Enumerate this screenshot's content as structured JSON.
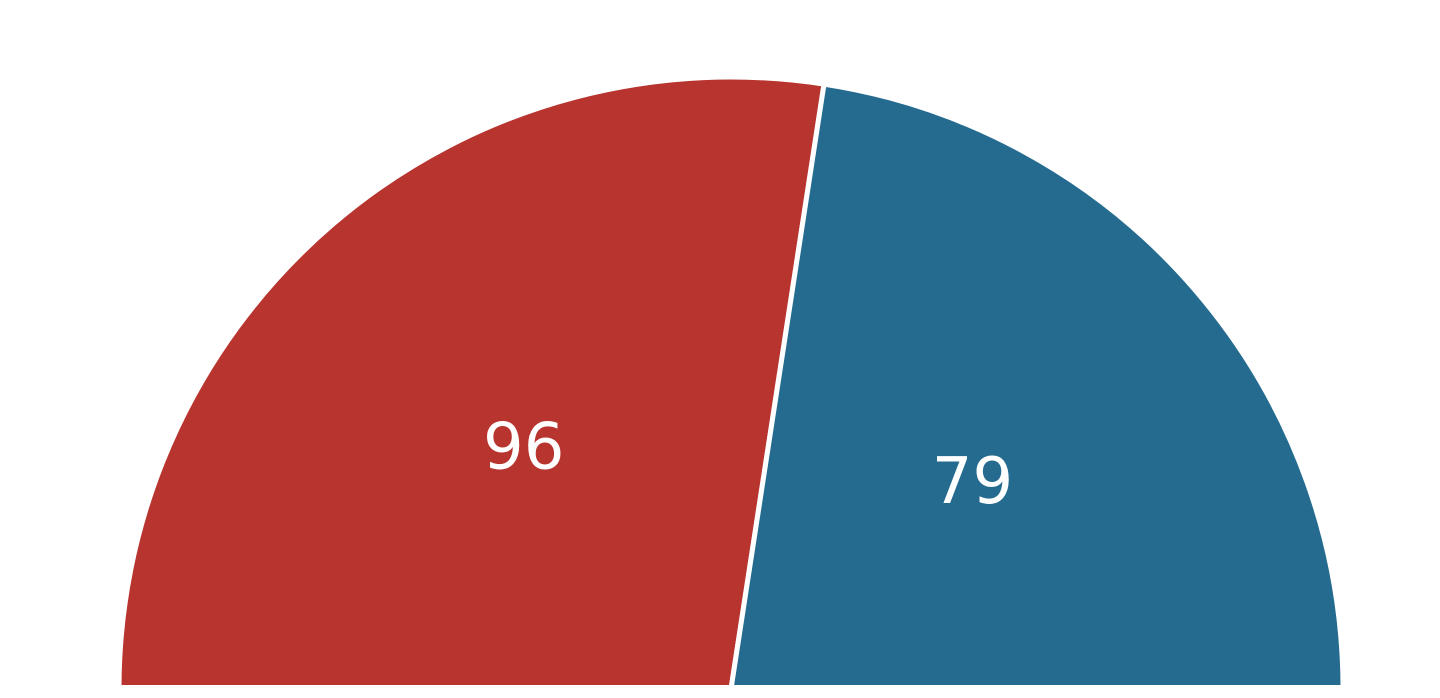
{
  "chart_data": {
    "type": "pie",
    "variant": "semicircle",
    "title": "",
    "slices": [
      {
        "label": "96",
        "value": 96,
        "color": "#B8342F"
      },
      {
        "label": "79",
        "value": 79,
        "color": "#256B90"
      }
    ],
    "legend": "none"
  }
}
